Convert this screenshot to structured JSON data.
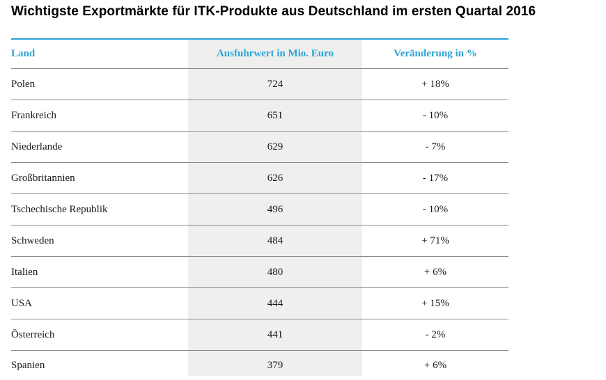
{
  "title": "Wichtigste Exportmärkte für ITK-Produkte aus Deutschland im ersten Quartal 2016",
  "colors": {
    "accent": "#29a3d8",
    "column_shade": "#efefef",
    "rule": "#8a8a8a"
  },
  "chart_data": {
    "type": "table",
    "title": "Wichtigste Exportmärkte für ITK-Produkte aus Deutschland im ersten Quartal 2016",
    "columns": [
      "Land",
      "Ausfuhrwert in Mio. Euro",
      "Veränderung in %"
    ],
    "rows": [
      [
        "Polen",
        "724",
        "+ 18%"
      ],
      [
        "Frankreich",
        "651",
        "- 10%"
      ],
      [
        "Niederlande",
        "629",
        "- 7%"
      ],
      [
        "Großbritannien",
        "626",
        "- 17%"
      ],
      [
        "Tschechische Republik",
        "496",
        "- 10%"
      ],
      [
        "Schweden",
        "484",
        "+ 71%"
      ],
      [
        "Italien",
        "480",
        "+ 6%"
      ],
      [
        "USA",
        "444",
        "+ 15%"
      ],
      [
        "Österreich",
        "441",
        "- 2%"
      ],
      [
        "Spanien",
        "379",
        "+ 6%"
      ]
    ]
  }
}
